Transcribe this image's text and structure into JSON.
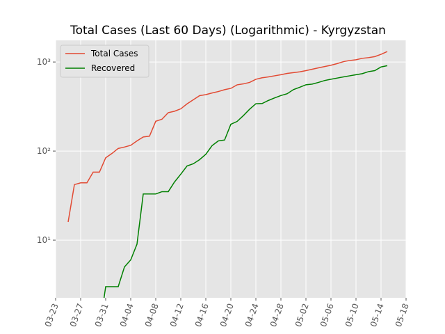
{
  "chart_data": {
    "type": "line",
    "title": "Total Cases (Last 60 Days) (Logarithmic) - Kyrgyzstan",
    "x": [
      "03-25",
      "03-26",
      "03-27",
      "03-28",
      "03-29",
      "03-30",
      "03-31",
      "04-01",
      "04-02",
      "04-03",
      "04-04",
      "04-05",
      "04-06",
      "04-07",
      "04-08",
      "04-09",
      "04-10",
      "04-11",
      "04-12",
      "04-13",
      "04-14",
      "04-15",
      "04-16",
      "04-17",
      "04-18",
      "04-19",
      "04-20",
      "04-21",
      "04-22",
      "04-23",
      "04-24",
      "04-25",
      "04-26",
      "04-27",
      "04-28",
      "04-29",
      "04-30",
      "05-01",
      "05-02",
      "05-03",
      "05-04",
      "05-05",
      "05-06",
      "05-07",
      "05-08",
      "05-09",
      "05-10",
      "05-11",
      "05-12",
      "05-13",
      "05-14",
      "05-15"
    ],
    "series": [
      {
        "name": "Total Cases",
        "color": "#e24a33",
        "values": [
          16,
          42,
          44,
          44,
          58,
          58,
          84,
          94,
          107,
          111,
          116,
          130,
          144,
          147,
          216,
          228,
          270,
          280,
          298,
          339,
          377,
          419,
          430,
          449,
          466,
          489,
          506,
          554,
          568,
          590,
          640,
          665,
          680,
          700,
          720,
          745,
          760,
          775,
          800,
          830,
          860,
          890,
          920,
          960,
          1010,
          1040,
          1060,
          1100,
          1120,
          1150,
          1220,
          1310
        ]
      },
      {
        "name": "Recovered",
        "color": "#008000",
        "values": [
          null,
          null,
          null,
          null,
          null,
          1,
          3,
          3,
          3,
          5,
          6,
          9,
          33,
          33,
          33,
          35,
          35,
          45,
          55,
          68,
          72,
          80,
          92,
          115,
          130,
          133,
          200,
          215,
          250,
          295,
          340,
          342,
          370,
          395,
          420,
          440,
          490,
          520,
          555,
          565,
          590,
          620,
          640,
          660,
          680,
          700,
          720,
          740,
          780,
          800,
          880,
          910
        ]
      }
    ],
    "log_y": true,
    "grid": true,
    "legend": "upper left",
    "xlim": [
      "03-23",
      "05-18"
    ],
    "xticks": [
      "03-23",
      "03-27",
      "03-31",
      "04-04",
      "04-08",
      "04-12",
      "04-16",
      "04-20",
      "04-24",
      "04-28",
      "05-02",
      "05-06",
      "05-10",
      "05-14",
      "05-18"
    ],
    "ylim": [
      2.25,
      1750
    ],
    "yticks": [
      {
        "value": 10,
        "label": "10¹"
      },
      {
        "value": 100,
        "label": "10²"
      },
      {
        "value": 1000,
        "label": "10³"
      }
    ]
  }
}
